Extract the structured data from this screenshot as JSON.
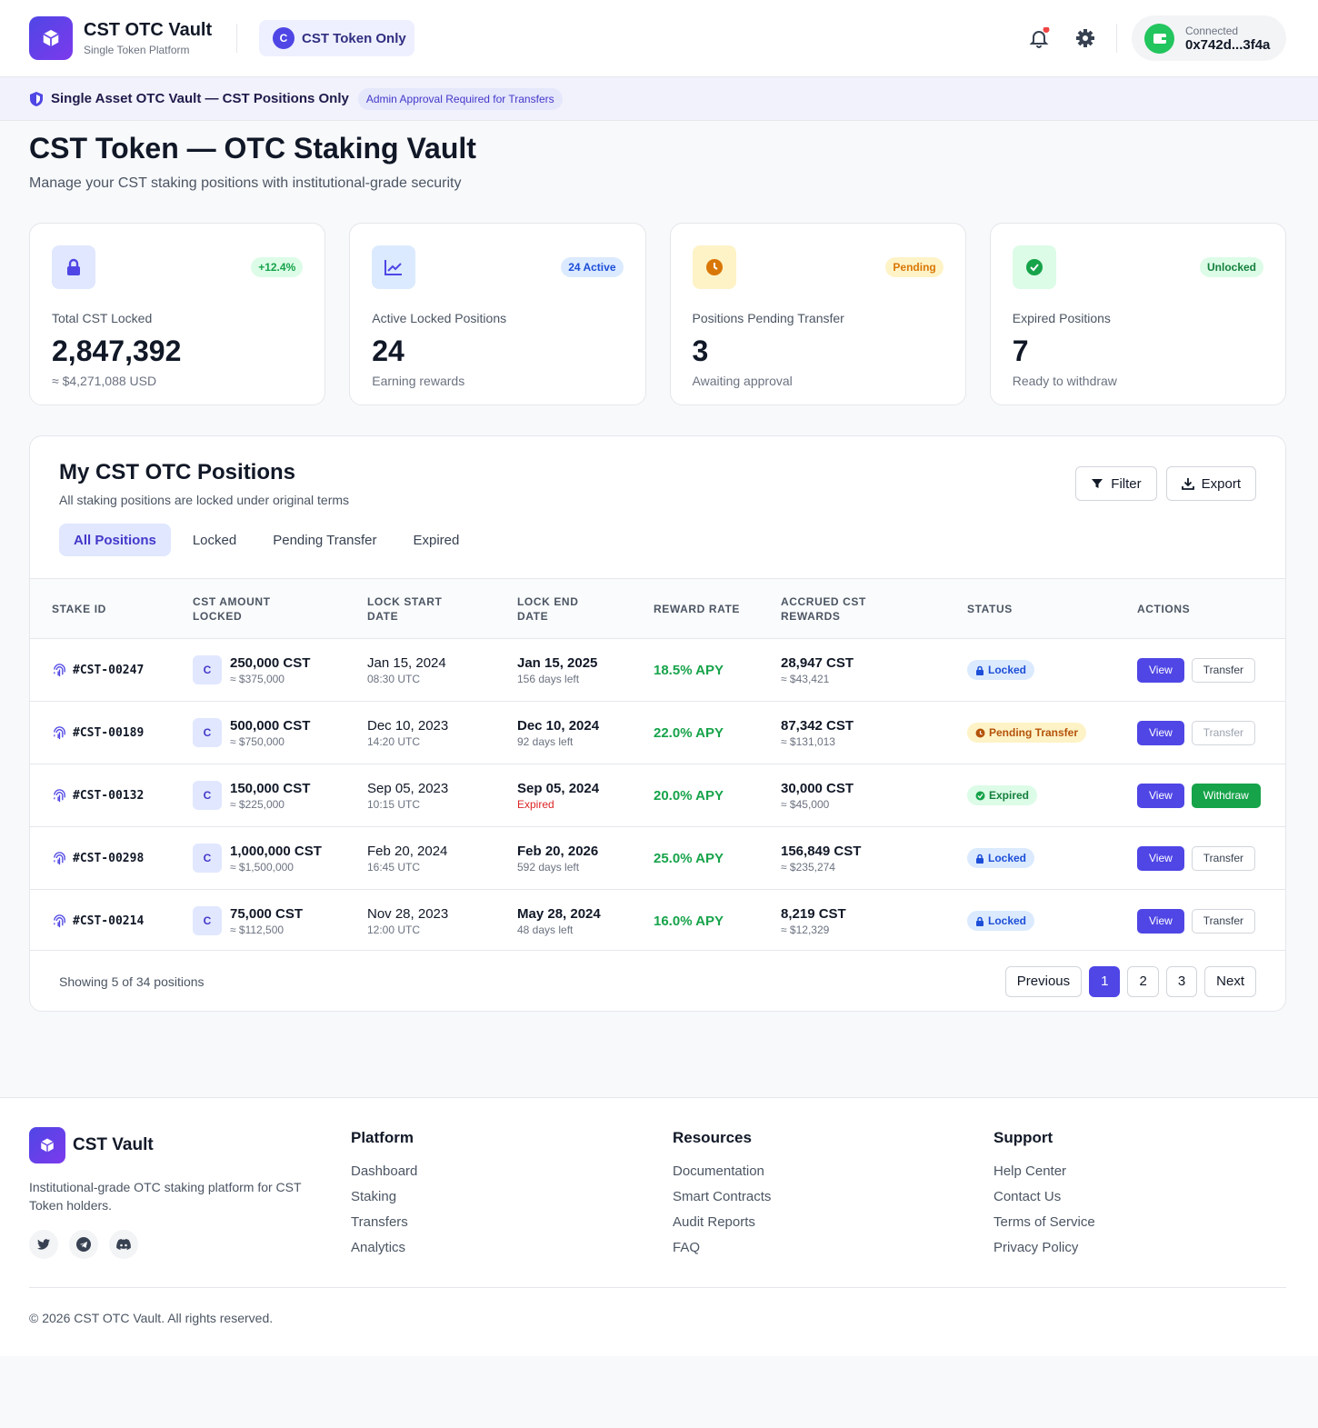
{
  "header": {
    "brand_title": "CST OTC Vault",
    "brand_subtitle": "Single Token Platform",
    "token_icon": "C",
    "token_badge": "CST Token Only",
    "wallet_status": "Connected",
    "wallet_address": "0x742d...3f4a"
  },
  "banner": {
    "text": "Single Asset OTC Vault — CST Positions Only",
    "tag": "Admin Approval Required for Transfers"
  },
  "intro": {
    "title": "CST Token — OTC Staking Vault",
    "subtitle": "Manage your CST staking positions with institutional-grade security"
  },
  "stats": [
    {
      "badge": "+12.4%",
      "label": "Total CST Locked",
      "value": "2,847,392",
      "note": "≈ $4,271,088 USD"
    },
    {
      "badge": "24 Active",
      "label": "Active Locked Positions",
      "value": "24",
      "note": "Earning rewards"
    },
    {
      "badge": "Pending",
      "label": "Positions Pending Transfer",
      "value": "3",
      "note": "Awaiting approval"
    },
    {
      "badge": "Unlocked",
      "label": "Expired Positions",
      "value": "7",
      "note": "Ready to withdraw"
    }
  ],
  "positions": {
    "title": "My CST OTC Positions",
    "subtitle": "All staking positions are locked under original terms",
    "buttons": [
      "Filter",
      "Export"
    ],
    "tabs": [
      "All Positions",
      "Locked",
      "Pending Transfer",
      "Expired"
    ],
    "columns": [
      "STAKE ID",
      "CST AMOUNT LOCKED",
      "LOCK START DATE",
      "LOCK END DATE",
      "REWARD RATE",
      "ACCRUED CST REWARDS",
      "STATUS",
      "ACTIONS"
    ],
    "rows": [
      {
        "id": "#CST-00247",
        "icon": "C",
        "amount": "250,000 CST",
        "amount_usd": "≈ $375,000",
        "start_date": "Jan 15, 2024",
        "start_time": "08:30 UTC",
        "end_date": "Jan 15, 2025",
        "end_note": "156 days left",
        "rate": "18.5% APY",
        "rewards": "28,947 CST",
        "rewards_usd": "≈ $43,421",
        "status": "Locked",
        "actions": [
          "View",
          "Transfer"
        ]
      },
      {
        "id": "#CST-00189",
        "icon": "C",
        "amount": "500,000 CST",
        "amount_usd": "≈ $750,000",
        "start_date": "Dec 10, 2023",
        "start_time": "14:20 UTC",
        "end_date": "Dec 10, 2024",
        "end_note": "92 days left",
        "rate": "22.0% APY",
        "rewards": "87,342 CST",
        "rewards_usd": "≈ $131,013",
        "status": "Pending Transfer",
        "actions": [
          "View",
          "Transfer"
        ]
      },
      {
        "id": "#CST-00132",
        "icon": "C",
        "amount": "150,000 CST",
        "amount_usd": "≈ $225,000",
        "start_date": "Sep 05, 2023",
        "start_time": "10:15 UTC",
        "end_date": "Sep 05, 2024",
        "end_note": "Expired",
        "rate": "20.0% APY",
        "rewards": "30,000 CST",
        "rewards_usd": "≈ $45,000",
        "status": "Expired",
        "actions": [
          "View",
          "Withdraw"
        ]
      },
      {
        "id": "#CST-00298",
        "icon": "C",
        "amount": "1,000,000 CST",
        "amount_usd": "≈ $1,500,000",
        "start_date": "Feb 20, 2024",
        "start_time": "16:45 UTC",
        "end_date": "Feb 20, 2026",
        "end_note": "592 days left",
        "rate": "25.0% APY",
        "rewards": "156,849 CST",
        "rewards_usd": "≈ $235,274",
        "status": "Locked",
        "actions": [
          "View",
          "Transfer"
        ]
      },
      {
        "id": "#CST-00214",
        "icon": "C",
        "amount": "75,000 CST",
        "amount_usd": "≈ $112,500",
        "start_date": "Nov 28, 2023",
        "start_time": "12:00 UTC",
        "end_date": "May 28, 2024",
        "end_note": "48 days left",
        "rate": "16.0% APY",
        "rewards": "8,219 CST",
        "rewards_usd": "≈ $12,329",
        "status": "Locked",
        "actions": [
          "View",
          "Transfer"
        ]
      }
    ],
    "showing": "Showing 5 of 34 positions",
    "pagination": [
      "Previous",
      "1",
      "2",
      "3",
      "Next"
    ]
  },
  "footer": {
    "brand": "CST Vault",
    "description": "Institutional-grade OTC staking platform for CST Token holders.",
    "columns": [
      {
        "title": "Platform",
        "links": [
          "Dashboard",
          "Staking",
          "Transfers",
          "Analytics"
        ]
      },
      {
        "title": "Resources",
        "links": [
          "Documentation",
          "Smart Contracts",
          "Audit Reports",
          "FAQ"
        ]
      },
      {
        "title": "Support",
        "links": [
          "Help Center",
          "Contact Us",
          "Terms of Service",
          "Privacy Policy"
        ]
      }
    ],
    "copyright": "© 2026 CST OTC Vault. All rights reserved."
  }
}
